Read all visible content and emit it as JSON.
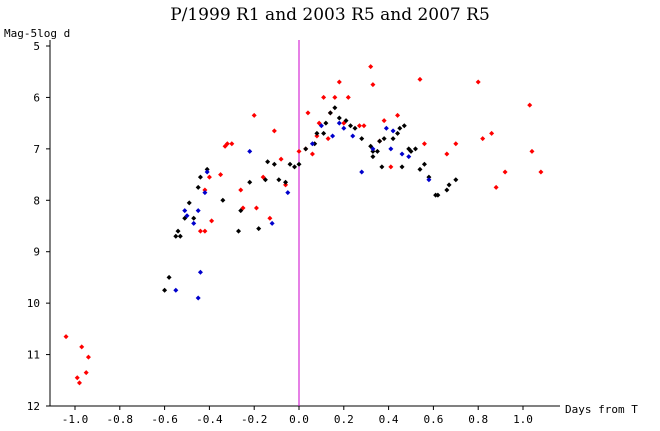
{
  "chart_data": {
    "type": "scatter",
    "title": "P/1999 R1 and 2003 R5 and 2007 R5",
    "xlabel": "Days from T",
    "ylabel": "Mag-5log d",
    "xlim": [
      -1.1,
      1.1
    ],
    "ylim": [
      12,
      5
    ],
    "y_inverted": true,
    "xticks": [
      "-1.0",
      "-0.8",
      "-0.6",
      "-0.4",
      "-0.2",
      "0.0",
      "0.2",
      "0.4",
      "0.6",
      "0.8",
      "1.0"
    ],
    "yticks": [
      "5",
      "6",
      "7",
      "8",
      "9",
      "10",
      "11",
      "12"
    ],
    "marker_line_x": 0.0,
    "marker_line_color": "#cc00cc",
    "grid": false,
    "legend": "none",
    "series": [
      {
        "color": "#ff0000",
        "points": [
          [
            -1.04,
            10.65
          ],
          [
            -0.99,
            11.45
          ],
          [
            -0.98,
            11.55
          ],
          [
            -0.97,
            10.85
          ],
          [
            -0.95,
            11.35
          ],
          [
            -0.94,
            11.05
          ],
          [
            -0.44,
            8.6
          ],
          [
            -0.42,
            8.6
          ],
          [
            -0.42,
            7.8
          ],
          [
            -0.4,
            7.55
          ],
          [
            -0.39,
            8.4
          ],
          [
            -0.35,
            7.5
          ],
          [
            -0.33,
            6.95
          ],
          [
            -0.32,
            6.9
          ],
          [
            -0.3,
            6.9
          ],
          [
            -0.26,
            7.8
          ],
          [
            -0.25,
            8.15
          ],
          [
            -0.2,
            6.35
          ],
          [
            -0.19,
            8.15
          ],
          [
            -0.16,
            7.55
          ],
          [
            -0.13,
            8.35
          ],
          [
            -0.11,
            6.65
          ],
          [
            -0.08,
            7.2
          ],
          [
            -0.06,
            7.7
          ],
          [
            0.0,
            7.05
          ],
          [
            0.03,
            7.0
          ],
          [
            0.04,
            6.3
          ],
          [
            0.06,
            7.1
          ],
          [
            0.08,
            6.75
          ],
          [
            0.09,
            6.5
          ],
          [
            0.11,
            6.0
          ],
          [
            0.13,
            6.8
          ],
          [
            0.14,
            6.3
          ],
          [
            0.16,
            6.0
          ],
          [
            0.18,
            5.7
          ],
          [
            0.2,
            6.5
          ],
          [
            0.22,
            6.0
          ],
          [
            0.27,
            6.55
          ],
          [
            0.29,
            6.55
          ],
          [
            0.32,
            5.4
          ],
          [
            0.33,
            5.75
          ],
          [
            0.36,
            6.85
          ],
          [
            0.38,
            6.45
          ],
          [
            0.41,
            7.35
          ],
          [
            0.44,
            6.35
          ],
          [
            0.54,
            5.65
          ],
          [
            0.56,
            6.9
          ],
          [
            0.66,
            7.1
          ],
          [
            0.7,
            6.9
          ],
          [
            0.8,
            5.7
          ],
          [
            0.82,
            6.8
          ],
          [
            0.86,
            6.7
          ],
          [
            0.88,
            7.75
          ],
          [
            0.92,
            7.45
          ],
          [
            1.03,
            6.15
          ],
          [
            1.04,
            7.05
          ],
          [
            1.08,
            7.45
          ]
        ]
      },
      {
        "color": "#000000",
        "points": [
          [
            -0.6,
            9.75
          ],
          [
            -0.58,
            9.5
          ],
          [
            -0.55,
            8.7
          ],
          [
            -0.54,
            8.6
          ],
          [
            -0.53,
            8.7
          ],
          [
            -0.51,
            8.35
          ],
          [
            -0.49,
            8.05
          ],
          [
            -0.47,
            8.35
          ],
          [
            -0.45,
            7.75
          ],
          [
            -0.44,
            7.55
          ],
          [
            -0.41,
            7.4
          ],
          [
            -0.34,
            8.0
          ],
          [
            -0.27,
            8.6
          ],
          [
            -0.26,
            8.2
          ],
          [
            -0.22,
            7.65
          ],
          [
            -0.18,
            8.55
          ],
          [
            -0.15,
            7.6
          ],
          [
            -0.14,
            7.25
          ],
          [
            -0.11,
            7.3
          ],
          [
            -0.09,
            7.6
          ],
          [
            -0.06,
            7.65
          ],
          [
            -0.04,
            7.3
          ],
          [
            -0.02,
            7.35
          ],
          [
            0.0,
            7.3
          ],
          [
            0.03,
            7.0
          ],
          [
            0.07,
            6.9
          ],
          [
            0.08,
            6.7
          ],
          [
            0.11,
            6.7
          ],
          [
            0.12,
            6.5
          ],
          [
            0.14,
            6.3
          ],
          [
            0.16,
            6.2
          ],
          [
            0.18,
            6.4
          ],
          [
            0.21,
            6.45
          ],
          [
            0.23,
            6.55
          ],
          [
            0.25,
            6.6
          ],
          [
            0.28,
            6.8
          ],
          [
            0.32,
            6.95
          ],
          [
            0.33,
            7.05
          ],
          [
            0.33,
            7.15
          ],
          [
            0.35,
            7.05
          ],
          [
            0.36,
            6.85
          ],
          [
            0.37,
            7.35
          ],
          [
            0.38,
            6.8
          ],
          [
            0.42,
            6.8
          ],
          [
            0.44,
            6.7
          ],
          [
            0.45,
            6.6
          ],
          [
            0.46,
            7.35
          ],
          [
            0.47,
            6.55
          ],
          [
            0.49,
            7.0
          ],
          [
            0.5,
            7.05
          ],
          [
            0.52,
            7.0
          ],
          [
            0.54,
            7.4
          ],
          [
            0.56,
            7.3
          ],
          [
            0.58,
            7.55
          ],
          [
            0.61,
            7.9
          ],
          [
            0.62,
            7.9
          ],
          [
            0.66,
            7.8
          ],
          [
            0.67,
            7.7
          ],
          [
            0.7,
            7.6
          ]
        ]
      },
      {
        "color": "#0000cc",
        "points": [
          [
            -0.55,
            9.75
          ],
          [
            -0.51,
            8.2
          ],
          [
            -0.5,
            8.3
          ],
          [
            -0.47,
            8.45
          ],
          [
            -0.45,
            8.2
          ],
          [
            -0.45,
            9.9
          ],
          [
            -0.44,
            9.4
          ],
          [
            -0.42,
            7.85
          ],
          [
            -0.41,
            7.45
          ],
          [
            -0.22,
            7.05
          ],
          [
            -0.12,
            8.45
          ],
          [
            -0.05,
            7.85
          ],
          [
            0.06,
            6.9
          ],
          [
            0.1,
            6.55
          ],
          [
            0.15,
            6.75
          ],
          [
            0.18,
            6.5
          ],
          [
            0.2,
            6.6
          ],
          [
            0.24,
            6.75
          ],
          [
            0.28,
            7.45
          ],
          [
            0.33,
            7.0
          ],
          [
            0.39,
            6.6
          ],
          [
            0.41,
            7.0
          ],
          [
            0.42,
            6.65
          ],
          [
            0.46,
            7.1
          ],
          [
            0.49,
            7.15
          ],
          [
            0.58,
            7.6
          ]
        ]
      }
    ]
  }
}
